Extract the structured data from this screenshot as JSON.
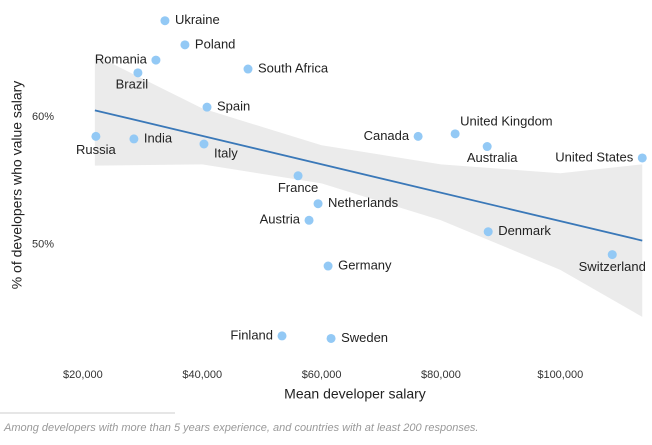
{
  "chart_data": {
    "type": "scatter",
    "x_label": "Mean developer salary",
    "y_label": "% of developers who value salary",
    "footnote": "Among developers with more than 5 years experience, and countries with at least 200 responses.",
    "xlim": [
      16500,
      114700
    ],
    "ylim": [
      41.3,
      68.6
    ],
    "xticks": [
      {
        "value": 20000,
        "label": "$20,000"
      },
      {
        "value": 40000,
        "label": "$40,000"
      },
      {
        "value": 60000,
        "label": "$60,000"
      },
      {
        "value": 80000,
        "label": "$80,000"
      },
      {
        "value": 100000,
        "label": "$100,000"
      }
    ],
    "yticks": [
      {
        "value": 50,
        "label": "50%"
      },
      {
        "value": 60,
        "label": "60%"
      }
    ],
    "grid": false,
    "color": "#93c9f5",
    "labels": [
      "Ukraine",
      "Poland",
      "Romania",
      "Brazil",
      "South Africa",
      "Spain",
      "Russia",
      "India",
      "Italy",
      "Canada",
      "United Kingdom",
      "Australia",
      "United States",
      "France",
      "Netherlands",
      "Austria",
      "Denmark",
      "Switzerland",
      "Germany",
      "Finland",
      "Sweden"
    ],
    "x": [
      33750,
      37100,
      32240,
      29220,
      47670,
      40800,
      22180,
      28550,
      40290,
      76180,
      82380,
      87750,
      113740,
      56060,
      59410,
      57900,
      87920,
      108710,
      61090,
      53370,
      61590
    ],
    "values": [
      67.6,
      65.7,
      64.5,
      63.5,
      63.8,
      60.8,
      58.5,
      58.3,
      57.9,
      58.5,
      58.7,
      57.7,
      56.8,
      55.4,
      53.2,
      51.9,
      51.0,
      49.2,
      48.3,
      42.8,
      42.6
    ],
    "trend_line": {
      "color": "#3a78b8",
      "x": [
        22010,
        113740
      ],
      "values": [
        60.55,
        50.3
      ]
    },
    "confidence_band": {
      "color": "#ebebeb",
      "x": [
        22010,
        40000,
        60000,
        80000,
        100000,
        113740
      ],
      "lower": [
        56.2,
        56.3,
        54.8,
        51.9,
        48.0,
        44.3
      ],
      "upper": [
        64.9,
        60.7,
        57.8,
        56.3,
        55.6,
        56.3
      ]
    }
  }
}
